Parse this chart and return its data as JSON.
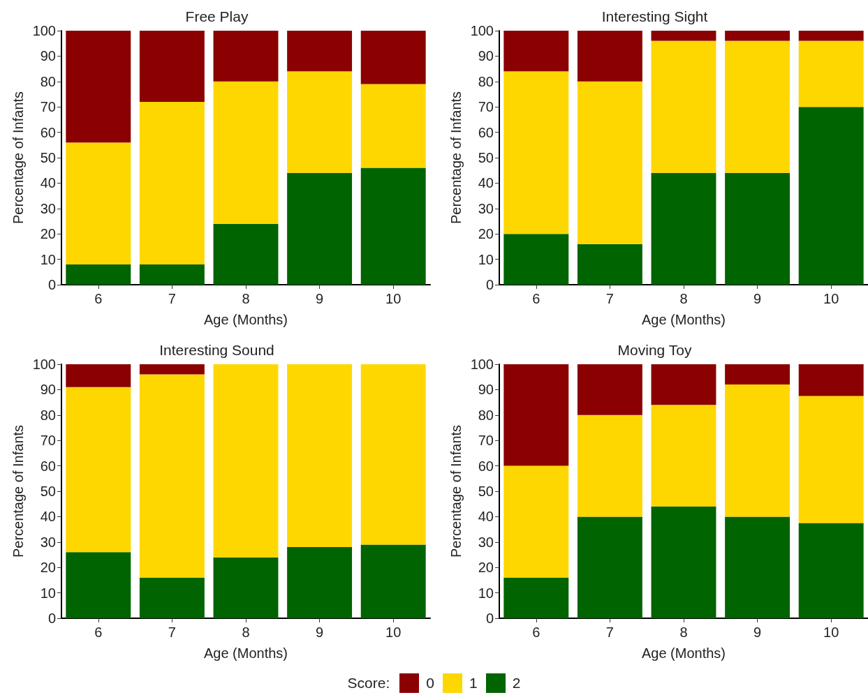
{
  "chart_data": [
    {
      "type": "bar",
      "title": "Free Play",
      "xlabel": "Age (Months)",
      "ylabel": "Percentage of Infants",
      "categories": [
        "6",
        "7",
        "8",
        "9",
        "10"
      ],
      "stacked": true,
      "ylim": [
        0,
        100
      ],
      "yticks": [
        0,
        10,
        20,
        30,
        40,
        50,
        60,
        70,
        80,
        90,
        100
      ],
      "grid": false,
      "legend": "bottom",
      "legend_title": "Score:",
      "series": [
        {
          "name": "2",
          "color": "#006400",
          "values": [
            8,
            8,
            24,
            44,
            46
          ]
        },
        {
          "name": "1",
          "color": "#ffd700",
          "values": [
            48,
            64,
            56,
            40,
            33
          ]
        },
        {
          "name": "0",
          "color": "#8b0000",
          "values": [
            44,
            28,
            20,
            16,
            21
          ]
        }
      ]
    },
    {
      "type": "bar",
      "title": "Interesting Sight",
      "xlabel": "Age (Months)",
      "ylabel": "Percentage of Infants",
      "categories": [
        "6",
        "7",
        "8",
        "9",
        "10"
      ],
      "stacked": true,
      "ylim": [
        0,
        100
      ],
      "yticks": [
        0,
        10,
        20,
        30,
        40,
        50,
        60,
        70,
        80,
        90,
        100
      ],
      "grid": false,
      "series": [
        {
          "name": "2",
          "color": "#006400",
          "values": [
            20,
            16,
            44,
            44,
            70
          ]
        },
        {
          "name": "1",
          "color": "#ffd700",
          "values": [
            64,
            64,
            52,
            52,
            26
          ]
        },
        {
          "name": "0",
          "color": "#8b0000",
          "values": [
            16,
            20,
            4,
            4,
            4
          ]
        }
      ]
    },
    {
      "type": "bar",
      "title": "Interesting Sound",
      "xlabel": "Age (Months)",
      "ylabel": "Percentage of Infants",
      "categories": [
        "6",
        "7",
        "8",
        "9",
        "10"
      ],
      "stacked": true,
      "ylim": [
        0,
        100
      ],
      "yticks": [
        0,
        10,
        20,
        30,
        40,
        50,
        60,
        70,
        80,
        90,
        100
      ],
      "grid": false,
      "series": [
        {
          "name": "2",
          "color": "#006400",
          "values": [
            26,
            16,
            24,
            28,
            29
          ]
        },
        {
          "name": "1",
          "color": "#ffd700",
          "values": [
            65,
            80,
            76,
            72,
            71
          ]
        },
        {
          "name": "0",
          "color": "#8b0000",
          "values": [
            9,
            4,
            0,
            0,
            0
          ]
        }
      ]
    },
    {
      "type": "bar",
      "title": "Moving Toy",
      "xlabel": "Age (Months)",
      "ylabel": "Percentage of Infants",
      "categories": [
        "6",
        "7",
        "8",
        "9",
        "10"
      ],
      "stacked": true,
      "ylim": [
        0,
        100
      ],
      "yticks": [
        0,
        10,
        20,
        30,
        40,
        50,
        60,
        70,
        80,
        90,
        100
      ],
      "grid": false,
      "series": [
        {
          "name": "2",
          "color": "#006400",
          "values": [
            16,
            40,
            44,
            40,
            37.5
          ]
        },
        {
          "name": "1",
          "color": "#ffd700",
          "values": [
            44,
            40,
            40,
            52,
            50
          ]
        },
        {
          "name": "0",
          "color": "#8b0000",
          "values": [
            40,
            20,
            16,
            8,
            12.5
          ]
        }
      ]
    }
  ]
}
